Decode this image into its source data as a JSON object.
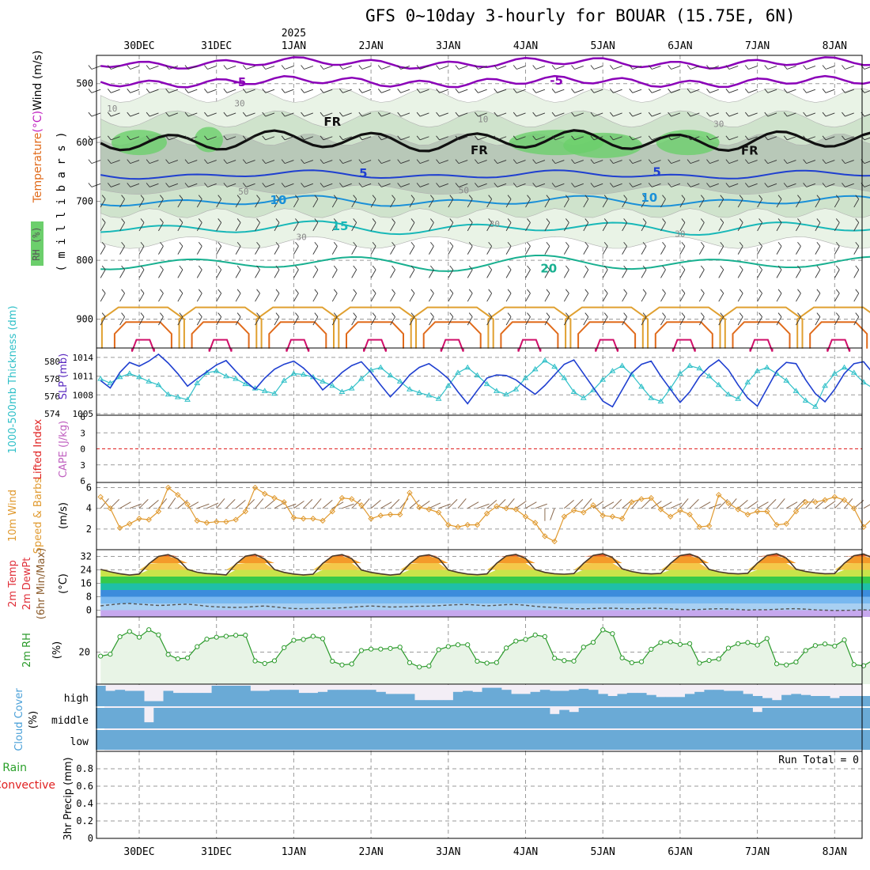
{
  "title": "GFS 0~10day 3-hourly for BOUAR (15.75E, 6N)",
  "year_label": "2025",
  "colors": {
    "temp_neg5": "#8a00b8",
    "freezing": "#111111",
    "temp5": "#1f3fd0",
    "temp10": "#1a90d8",
    "temp15": "#18b8b8",
    "temp20": "#18b090",
    "temp25": "#e0a030",
    "temp30": "#e06a1a",
    "temp35": "#d0106a",
    "slp": "#1f3fd0",
    "thickness": "#30c0c8",
    "lifted_index": "#e02020",
    "cape": "#c060c0",
    "wind10m": "#e09a30",
    "rh2m": "#2a9a2a",
    "cloud": "#6aaad6",
    "cloud_clear": "#f3eef6",
    "rh_fill": "#6ccf6c"
  },
  "chart_data": [
    {
      "panel": "upper_air",
      "type": "contour",
      "ylabel_parts": [
        "Temperature",
        "(°C)",
        "Wind (m/s)"
      ],
      "ylabel2": "( m i l l i b a r s )",
      "rh_legend": "RH (%)",
      "y_ticks": [
        500,
        600,
        700,
        800,
        900
      ],
      "ylim": [
        1000,
        450
      ],
      "isotherm_labels": [
        {
          "text": "-5",
          "x": 1.3,
          "y": 498,
          "key": "temp_neg5"
        },
        {
          "text": "-5",
          "x": 5.4,
          "y": 495,
          "key": "temp_neg5"
        },
        {
          "text": "FR",
          "x": 2.5,
          "y": 565,
          "key": "freezing"
        },
        {
          "text": "FR",
          "x": 4.4,
          "y": 613,
          "key": "freezing"
        },
        {
          "text": "FR",
          "x": 7.9,
          "y": 614,
          "key": "freezing"
        },
        {
          "text": "5",
          "x": 2.9,
          "y": 652,
          "key": "temp5"
        },
        {
          "text": "5",
          "x": 6.7,
          "y": 650,
          "key": "temp5"
        },
        {
          "text": "10",
          "x": 1.8,
          "y": 698,
          "key": "temp10"
        },
        {
          "text": "10",
          "x": 6.6,
          "y": 694,
          "key": "temp10"
        },
        {
          "text": "15",
          "x": 2.6,
          "y": 742,
          "key": "temp15"
        },
        {
          "text": "20",
          "x": 5.3,
          "y": 814,
          "key": "temp20"
        }
      ],
      "rh_labels": [
        {
          "text": "10",
          "x": -0.35,
          "y": 542
        },
        {
          "text": "30",
          "x": 1.3,
          "y": 533
        },
        {
          "text": "50",
          "x": 1.35,
          "y": 683
        },
        {
          "text": "30",
          "x": 2.1,
          "y": 760
        },
        {
          "text": "50",
          "x": 4.2,
          "y": 681
        },
        {
          "text": "30",
          "x": 4.6,
          "y": 738
        },
        {
          "text": "10",
          "x": 4.45,
          "y": 560
        },
        {
          "text": "30",
          "x": 7.5,
          "y": 568
        },
        {
          "text": "30",
          "x": 7.0,
          "y": 755
        }
      ]
    },
    {
      "panel": "slp_thickness",
      "type": "line",
      "ylabel_left": "1000-500mb Thickness (dm)",
      "ylabel_right": "SLP (mb)",
      "thickness_ticks": [
        574,
        576,
        578,
        580
      ],
      "slp_ticks": [
        1005,
        1008,
        1011,
        1014
      ],
      "slp_ylim": [
        1005,
        1015
      ],
      "slp": [
        1010.3,
        1009.1,
        1011.6,
        1013.2,
        1012.6,
        1013.4,
        1014.5,
        1013.1,
        1011.4,
        1009.4,
        1010.6,
        1011.7,
        1012.8,
        1013.5,
        1011.8,
        1010.2,
        1008.9,
        1010.7,
        1012.1,
        1012.9,
        1013.4,
        1012.3,
        1010.8,
        1008.8,
        1010.1,
        1011.6,
        1012.7,
        1013.3,
        1011.6,
        1009.6,
        1007.7,
        1009.3,
        1011.2,
        1012.4,
        1013.0,
        1011.9,
        1010.6,
        1008.5,
        1006.6,
        1008.7,
        1010.7,
        1011.2,
        1011.1,
        1010.4,
        1009.2,
        1008.1,
        1009.5,
        1011.2,
        1012.9,
        1013.6,
        1011.4,
        1009.2,
        1007.0,
        1006.1,
        1008.8,
        1011.5,
        1012.9,
        1013.4,
        1011.0,
        1008.9,
        1006.8,
        1008.5,
        1010.9,
        1012.5,
        1013.6,
        1012.0,
        1009.6,
        1007.5,
        1006.2,
        1009.0,
        1011.8,
        1013.2,
        1013.0,
        1010.4,
        1008.2,
        1006.9,
        1008.9,
        1011.4,
        1013.0,
        1013.3,
        1011.4,
        1009.0,
        1006.9,
        1008.1,
        1010.6,
        1013.2
      ],
      "thickness": [
        578.0,
        577.5,
        578.2,
        578.6,
        578.2,
        577.7,
        577.3,
        576.2,
        575.9,
        575.6,
        577.5,
        578.7,
        578.9,
        578.3,
        578.0,
        577.4,
        576.9,
        576.6,
        576.3,
        577.8,
        578.6,
        578.5,
        578.2,
        577.7,
        577.2,
        576.5,
        576.9,
        578.0,
        579.0,
        579.3,
        578.4,
        577.7,
        576.8,
        576.4,
        576.1,
        575.7,
        577.2,
        578.7,
        579.3,
        578.4,
        577.4,
        576.6,
        576.2,
        576.8,
        578.1,
        579.1,
        580.1,
        579.4,
        578.1,
        576.5,
        575.8,
        576.7,
        577.9,
        578.9,
        579.5,
        578.5,
        577.1,
        575.8,
        575.4,
        576.9,
        578.6,
        579.5,
        579.2,
        578.3,
        577.3,
        576.2,
        575.7,
        577.6,
        578.9,
        579.3,
        578.6,
        577.8,
        576.6,
        575.5,
        574.8,
        577.2,
        578.6,
        579.3,
        578.7,
        577.6,
        576.9,
        576.0,
        575.4,
        576.9,
        578.0,
        575.3
      ]
    },
    {
      "panel": "lifted_index_cape",
      "type": "line",
      "ylabel_left": "Lifted Index",
      "ylabel_right": "CAPE (J/kg)",
      "y_ticks_labels": [
        "-6",
        "-3",
        "0",
        "3",
        "6"
      ],
      "ylim": [
        -6,
        6
      ],
      "lifted_index": [],
      "cape_note": ""
    },
    {
      "panel": "wind10m",
      "type": "line",
      "ylabel_left": "10m Wind",
      "ylabel_mid": "Speed & Barbs",
      "ylabel_right": "(m/s)",
      "y_ticks": [
        2,
        4,
        6
      ],
      "ylim": [
        0,
        6.5
      ],
      "speed": [
        5.1,
        4.0,
        2.1,
        2.5,
        3.0,
        2.9,
        3.7,
        6.0,
        5.3,
        4.4,
        2.8,
        2.6,
        2.7,
        2.7,
        2.9,
        3.7,
        6.0,
        5.4,
        5.0,
        4.6,
        3.1,
        3.0,
        3.0,
        2.8,
        3.7,
        5.0,
        4.9,
        4.3,
        3.0,
        3.3,
        3.4,
        3.4,
        5.5,
        4.1,
        3.9,
        3.6,
        2.4,
        2.2,
        2.4,
        2.4,
        3.5,
        4.2,
        4.0,
        3.9,
        3.2,
        2.6,
        1.3,
        0.8,
        3.2,
        3.8,
        3.6,
        4.3,
        3.3,
        3.2,
        3.0,
        4.6,
        4.9,
        5.0,
        3.9,
        3.2,
        3.8,
        3.4,
        2.2,
        2.3,
        5.3,
        4.5,
        3.9,
        3.4,
        3.7,
        3.7,
        2.4,
        2.5,
        3.7,
        4.6,
        4.6,
        4.8,
        5.1,
        4.8,
        4.0,
        2.2,
        3.1,
        2.4,
        2.1,
        2.4,
        2.6,
        1.2
      ],
      "barb_directions_deg": [
        40,
        45,
        60,
        70,
        45,
        50,
        40,
        35,
        50,
        60,
        70,
        65,
        40,
        45,
        50,
        45,
        40,
        50,
        60,
        70,
        55,
        45,
        40,
        50,
        60,
        70,
        45,
        40,
        50,
        60,
        45,
        40,
        50,
        55,
        65,
        70,
        45,
        40,
        60,
        70,
        50,
        45,
        40,
        55,
        60,
        70,
        180,
        200,
        50,
        45,
        40,
        55,
        60,
        45,
        50,
        40,
        45,
        55,
        60,
        65,
        40,
        45,
        60,
        70,
        45,
        40,
        50,
        55,
        60,
        45,
        40,
        60,
        45,
        40,
        50,
        55,
        45,
        40,
        50,
        60,
        70,
        45,
        40,
        55,
        60,
        70
      ]
    },
    {
      "panel": "temp2m",
      "type": "area",
      "ylabel_left": "2m Temp",
      "ylabel_mid": "2m DewPt",
      "ylabel_right": "(6hr Min/Max)",
      "ylabel_unit": "(°C)",
      "y_ticks": [
        0,
        8,
        16,
        24,
        32
      ],
      "ylim": [
        -4,
        36
      ],
      "band_edges": [
        0,
        4,
        8,
        12,
        16,
        20,
        24,
        28,
        32
      ],
      "band_colors": [
        "#c6a8ee",
        "#a8d0f2",
        "#78b8f0",
        "#3c8cdc",
        "#1fbfa8",
        "#36c94a",
        "#c8e44a",
        "#f4c84a",
        "#f49a2a",
        "#e8602a",
        "#c0341e"
      ],
      "temperature": [
        24.3,
        22.8,
        21.7,
        20.9,
        21.5,
        27.6,
        32.0,
        33.1,
        30.5,
        24.3,
        22.6,
        21.8,
        21.5,
        21.0,
        27.4,
        32.1,
        33.2,
        30.4,
        24.2,
        22.5,
        21.5,
        21.0,
        21.4,
        27.8,
        32.2,
        33.1,
        30.7,
        23.9,
        22.5,
        21.6,
        20.9,
        21.5,
        27.6,
        32.1,
        33.0,
        30.8,
        23.9,
        22.5,
        21.5,
        21.1,
        21.6,
        27.9,
        32.3,
        33.2,
        30.8,
        24.2,
        22.5,
        21.7,
        21.4,
        21.8,
        27.9,
        32.6,
        33.6,
        31.3,
        24.6,
        23.0,
        22.0,
        21.6,
        21.9,
        27.8,
        32.5,
        33.4,
        31.1,
        24.3,
        22.8,
        22.0,
        21.6,
        22.0,
        28.0,
        32.6,
        33.6,
        31.0,
        24.4,
        23.0,
        22.2,
        21.7,
        21.8,
        27.9,
        32.4,
        33.4,
        30.9,
        24.3,
        22.7,
        21.9,
        21.5,
        20.6
      ],
      "dewpoint": [
        2.6,
        3.2,
        3.8,
        4.0,
        3.6,
        3.2,
        2.8,
        3.0,
        3.4,
        3.6,
        3.0,
        2.4,
        2.0,
        1.8,
        1.6,
        1.8,
        2.2,
        2.5,
        2.0,
        1.4,
        1.0,
        0.9,
        1.0,
        1.1,
        1.2,
        1.4,
        1.8,
        2.2,
        2.5,
        2.2,
        1.9,
        2.0,
        2.2,
        2.4,
        2.4,
        2.7,
        3.0,
        3.3,
        3.4,
        3.0,
        2.6,
        2.9,
        3.3,
        3.4,
        2.9,
        2.3,
        1.9,
        1.6,
        1.2,
        0.9,
        0.8,
        1.0,
        1.2,
        1.2,
        1.0,
        0.8,
        0.9,
        1.2,
        1.1,
        0.8,
        0.4,
        0.3,
        0.4,
        0.7,
        0.9,
        0.7,
        0.4,
        0.1,
        0.3,
        0.3,
        0.5,
        0.8,
        0.9,
        0.6,
        0.2,
        0.0,
        -0.2,
        -0.1,
        0.0,
        0.2,
        0.0,
        -0.3,
        -0.2,
        0.0,
        -0.3,
        -0.6
      ]
    },
    {
      "panel": "rh2m",
      "type": "line",
      "ylabel_left": "2m RH",
      "ylabel_right": "(%)",
      "y_ticks": [
        20
      ],
      "ylim": [
        0,
        42
      ],
      "rh": [
        17.5,
        18.7,
        29.6,
        32.9,
        29.3,
        34.0,
        30.8,
        18.5,
        15.8,
        16.4,
        23.4,
        28.1,
        29.3,
        29.9,
        30.5,
        30.6,
        14.5,
        12.9,
        14.6,
        22.8,
        27.4,
        27.9,
        29.9,
        28.4,
        14.3,
        12.0,
        12.6,
        21.0,
        21.9,
        21.9,
        22.3,
        23.1,
        13.4,
        10.7,
        11.3,
        21.5,
        23.5,
        24.6,
        24.6,
        14.3,
        13.1,
        13.5,
        22.6,
        26.9,
        27.9,
        30.7,
        29.7,
        16.2,
        14.7,
        14.4,
        23.1,
        26.1,
        33.9,
        31.5,
        16.4,
        13.4,
        14.0,
        21.8,
        26.0,
        26.4,
        24.8,
        25.3,
        13.1,
        14.8,
        15.7,
        22.5,
        25.3,
        26.0,
        24.4,
        28.5,
        12.7,
        12.0,
        13.8,
        21.0,
        24.1,
        25.1,
        23.8,
        27.6,
        12.2,
        11.5,
        15.1,
        21.0,
        22.8,
        22.5,
        23.2,
        25.2
      ]
    },
    {
      "panel": "cloud_cover",
      "type": "bar",
      "ylabel": "Cloud Cover",
      "ylabel_unit": "(%)",
      "levels": [
        "high",
        "middle",
        "low"
      ],
      "high_cover": [
        100,
        75,
        80,
        75,
        75,
        25,
        25,
        75,
        65,
        65,
        65,
        65,
        100,
        100,
        100,
        100,
        75,
        75,
        80,
        80,
        80,
        65,
        65,
        70,
        80,
        80,
        80,
        80,
        80,
        70,
        60,
        60,
        60,
        30,
        30,
        30,
        30,
        70,
        75,
        70,
        90,
        90,
        80,
        60,
        60,
        70,
        80,
        75,
        75,
        80,
        85,
        80,
        60,
        50,
        60,
        65,
        65,
        55,
        45,
        45,
        45,
        60,
        70,
        80,
        80,
        75,
        75,
        60,
        50,
        40,
        30,
        55,
        60,
        55,
        50,
        50,
        40,
        50,
        50,
        50,
        50,
        50,
        50,
        50,
        60,
        50
      ],
      "middle_cover": [
        100,
        100,
        100,
        100,
        100,
        30,
        100,
        100,
        100,
        100,
        100,
        100,
        100,
        100,
        100,
        100,
        100,
        100,
        100,
        100,
        100,
        100,
        100,
        100,
        100,
        100,
        100,
        100,
        100,
        100,
        100,
        100,
        100,
        100,
        100,
        100,
        100,
        100,
        100,
        100,
        100,
        100,
        100,
        100,
        100,
        100,
        100,
        70,
        90,
        80,
        100,
        100,
        100,
        100,
        100,
        100,
        100,
        100,
        100,
        100,
        100,
        100,
        100,
        100,
        100,
        100,
        100,
        100,
        80,
        100,
        100,
        100,
        100,
        100,
        100,
        100,
        100,
        100,
        100,
        100,
        100,
        100,
        100,
        100,
        100,
        100
      ],
      "low_cover": [
        100,
        100,
        100,
        100,
        100,
        100,
        100,
        100,
        100,
        100,
        100,
        100,
        100,
        100,
        100,
        100,
        100,
        100,
        100,
        100,
        100,
        100,
        100,
        100,
        100,
        100,
        100,
        100,
        100,
        100,
        100,
        100,
        100,
        100,
        100,
        100,
        100,
        100,
        100,
        100,
        100,
        100,
        100,
        100,
        100,
        100,
        100,
        100,
        100,
        100,
        100,
        100,
        100,
        100,
        100,
        100,
        100,
        100,
        100,
        100,
        100,
        100,
        100,
        100,
        100,
        100,
        100,
        100,
        100,
        100,
        100,
        100,
        100,
        100,
        100,
        100,
        100,
        100,
        100,
        100,
        100,
        100,
        100,
        100,
        100,
        100
      ]
    },
    {
      "panel": "precip3hr",
      "type": "bar",
      "ylabel_left_parts": [
        "Total / Rain",
        "Convective"
      ],
      "ylabel_right": "3hr Precip (mm)",
      "y_ticks": [
        0,
        0.2,
        0.4,
        0.6,
        0.8
      ],
      "ylim": [
        0,
        1.0
      ],
      "run_total_label": "Run Total = 0",
      "values": []
    }
  ],
  "time_axis": {
    "date_labels": [
      "30DEC",
      "31DEC",
      "1JAN",
      "2JAN",
      "3JAN",
      "4JAN",
      "5JAN",
      "6JAN",
      "7JAN",
      "8JAN"
    ],
    "steps_per_day": 8,
    "start_day_offset": -0.5
  }
}
